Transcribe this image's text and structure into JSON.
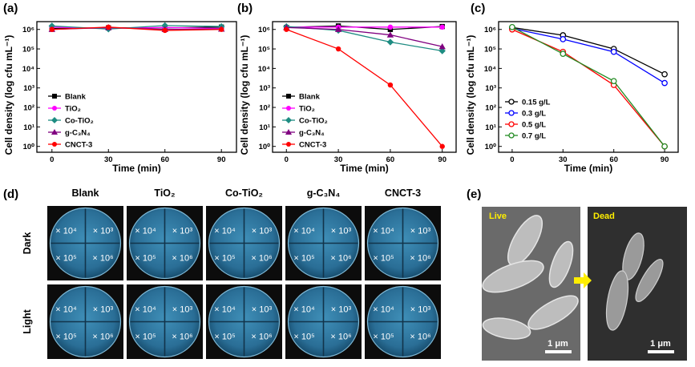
{
  "chart_data": [
    {
      "panel": "(a)",
      "type": "line",
      "xlabel": "Time (min)",
      "ylabel": "Cell density (log cfu mL⁻¹)",
      "x": [
        0,
        30,
        60,
        90
      ],
      "xlim": [
        -8,
        98
      ],
      "xticks": [
        "0",
        "30",
        "60",
        "90"
      ],
      "ylim": [
        -0.3,
        6.4
      ],
      "log_y": true,
      "yticks": [
        "10⁰",
        "10¹",
        "10²",
        "10³",
        "10⁴",
        "10⁵",
        "10⁶"
      ],
      "legend": "left",
      "series": [
        {
          "name": "Blank",
          "color": "#000000",
          "marker": "square",
          "values": [
            6.05,
            6.08,
            6.08,
            6.12
          ]
        },
        {
          "name": "TiO₂",
          "color": "#ff00ff",
          "marker": "circle",
          "values": [
            6.12,
            6.05,
            6.1,
            6.05
          ]
        },
        {
          "name": "Co-TiO₂",
          "color": "#1e8c82",
          "marker": "diamond",
          "values": [
            6.18,
            6.02,
            6.2,
            6.15
          ]
        },
        {
          "name": "g-C₃N₄",
          "color": "#800080",
          "marker": "triangle",
          "values": [
            6.0,
            6.1,
            6.0,
            6.02
          ]
        },
        {
          "name": "CNCT-3",
          "color": "#ff0000",
          "marker": "circle",
          "values": [
            6.0,
            6.12,
            5.95,
            6.0
          ]
        }
      ]
    },
    {
      "panel": "(b)",
      "type": "line",
      "xlabel": "Time (min)",
      "ylabel": "Cell density (log cfu mL⁻¹)",
      "x": [
        0,
        30,
        60,
        90
      ],
      "xlim": [
        -8,
        98
      ],
      "xticks": [
        "0",
        "30",
        "60",
        "90"
      ],
      "ylim": [
        -0.3,
        6.4
      ],
      "log_y": true,
      "yticks": [
        "10⁰",
        "10¹",
        "10²",
        "10³",
        "10⁴",
        "10⁵",
        "10⁶"
      ],
      "legend": "left",
      "series": [
        {
          "name": "Blank",
          "color": "#000000",
          "marker": "square",
          "values": [
            6.1,
            6.18,
            6.0,
            6.15
          ]
        },
        {
          "name": "TiO₂",
          "color": "#ff00ff",
          "marker": "circle",
          "values": [
            6.12,
            6.12,
            6.12,
            6.12
          ]
        },
        {
          "name": "Co-TiO₂",
          "color": "#1e8c82",
          "marker": "diamond",
          "values": [
            6.15,
            5.95,
            5.35,
            4.9
          ]
        },
        {
          "name": "g-C₃N₄",
          "color": "#800080",
          "marker": "triangle",
          "values": [
            6.1,
            6.0,
            5.72,
            5.12
          ]
        },
        {
          "name": "CNCT-3",
          "color": "#ff0000",
          "marker": "circle",
          "values": [
            6.0,
            5.0,
            3.15,
            0.0
          ]
        }
      ]
    },
    {
      "panel": "(c)",
      "type": "line",
      "xlabel": "Time (min)",
      "ylabel": "Cell density (log cfu mL⁻¹)",
      "x": [
        0,
        30,
        60,
        90
      ],
      "xlim": [
        -8,
        98
      ],
      "xticks": [
        "0",
        "30",
        "60",
        "90"
      ],
      "ylim": [
        -0.3,
        6.4
      ],
      "log_y": true,
      "yticks": [
        "10⁰",
        "10¹",
        "10²",
        "10³",
        "10⁴",
        "10⁵",
        "10⁶"
      ],
      "legend": "bottom-left",
      "series": [
        {
          "name": "0.15 g/L",
          "color": "#000000",
          "marker": "open-circle",
          "values": [
            6.1,
            5.7,
            5.0,
            3.7
          ]
        },
        {
          "name": "0.3 g/L",
          "color": "#0000ff",
          "marker": "open-circle",
          "values": [
            6.05,
            5.5,
            4.85,
            3.25
          ]
        },
        {
          "name": "0.5 g/L",
          "color": "#ff0000",
          "marker": "open-circle",
          "values": [
            6.0,
            4.85,
            3.15,
            0.0
          ]
        },
        {
          "name": "0.7 g/L",
          "color": "#228b22",
          "marker": "open-circle",
          "values": [
            6.12,
            4.75,
            3.35,
            0.0
          ]
        }
      ]
    }
  ],
  "panel_d": {
    "label": "(d)",
    "columns": [
      "Blank",
      "TiO₂",
      "Co-TiO₂",
      "g-C₃N₄",
      "CNCT-3"
    ],
    "rows": [
      "Dark",
      "Light"
    ],
    "dilutions": [
      "× 10⁴",
      "× 10³",
      "× 10⁵",
      "× 10⁶"
    ]
  },
  "panel_e": {
    "label": "(e)",
    "live_label": "Live",
    "dead_label": "Dead",
    "scale_left": "1 μm",
    "scale_right": "1 μm",
    "arrow_color": "#ffee00"
  }
}
